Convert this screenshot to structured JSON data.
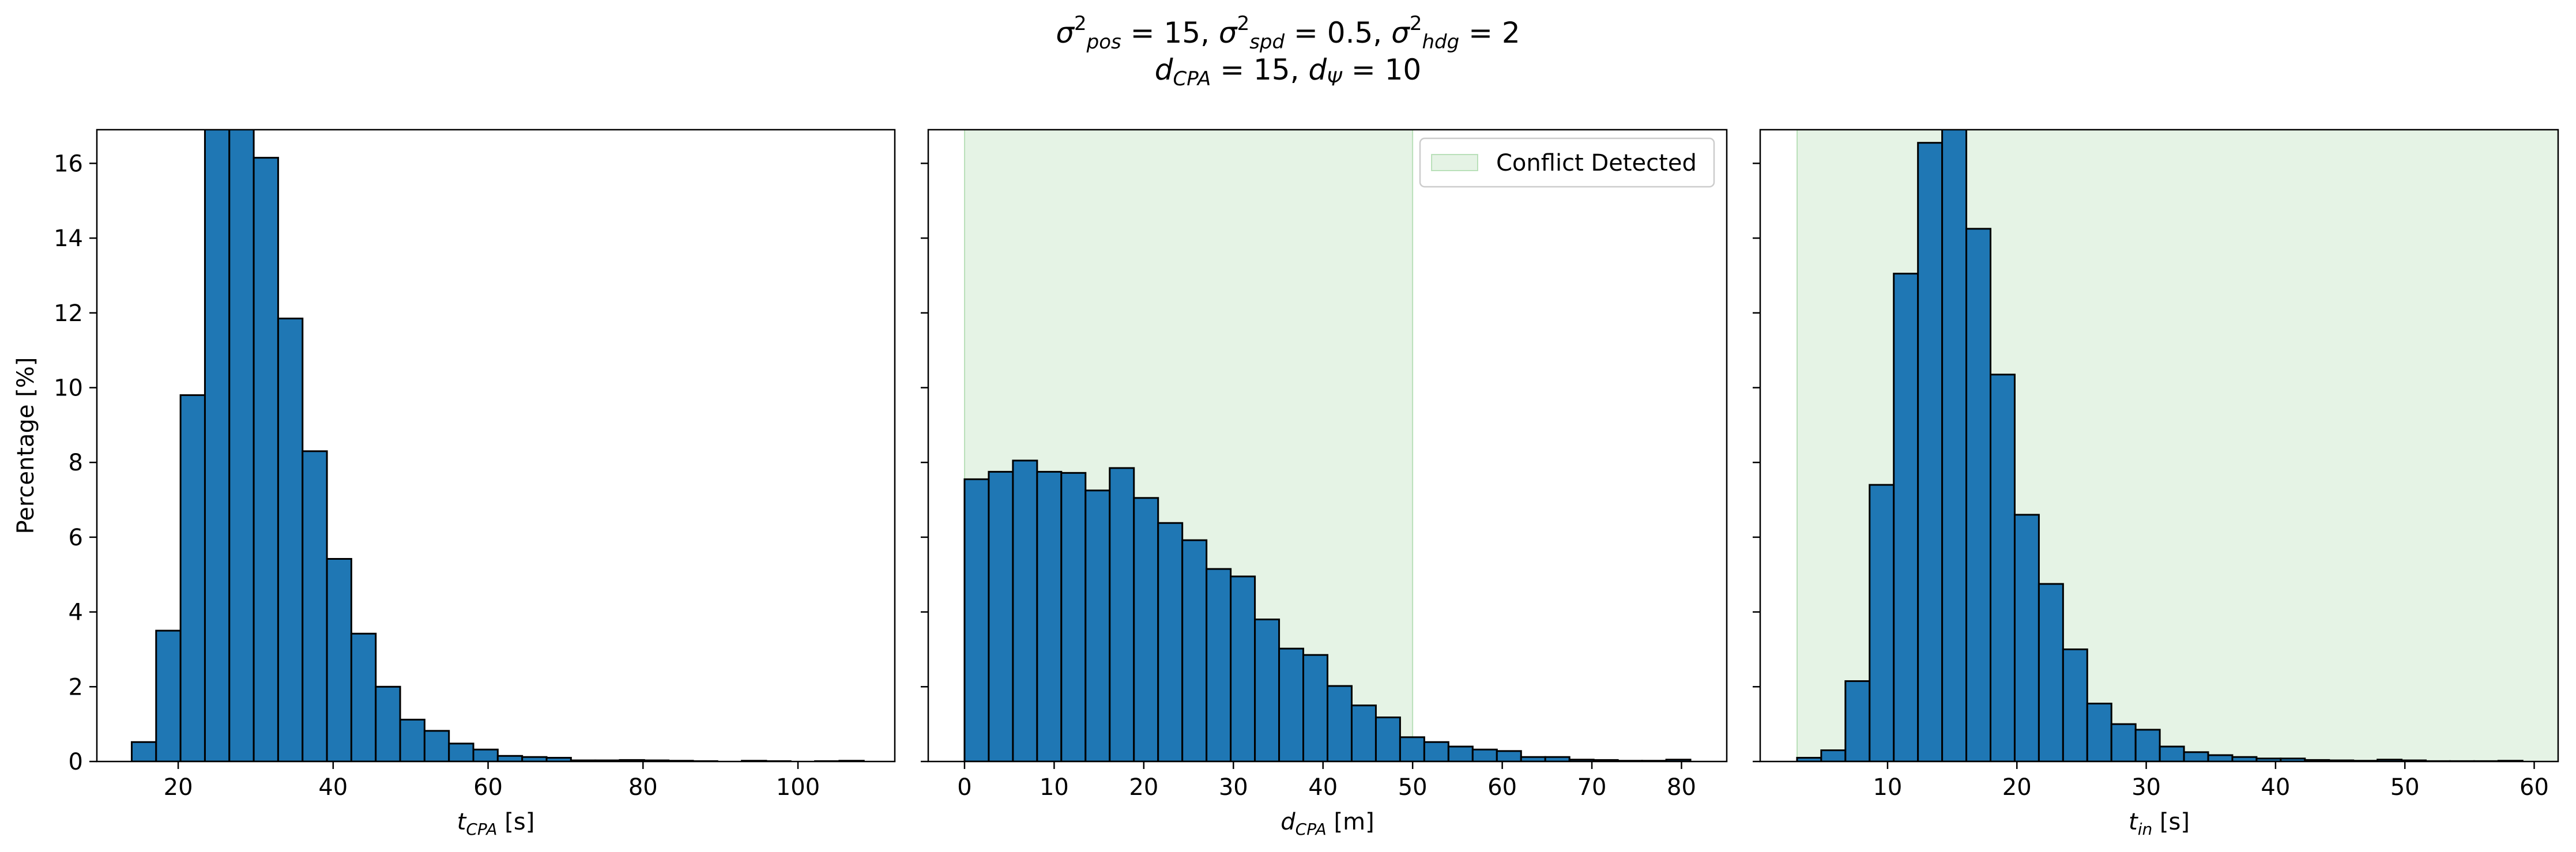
{
  "figure": {
    "title_line1": "σ²pos = 15, σ²spd = 0.5, σ²hdg = 2",
    "title_line2": "dCPA = 15, dΨ = 10",
    "title_parts": {
      "pos_sub": "pos",
      "pos_val": " = 15, ",
      "spd_sub": "spd",
      "spd_val": " = 0.5, ",
      "hdg_sub": "hdg",
      "hdg_val": " = 2",
      "dcpa_sub": "CPA",
      "dcpa_val": " = 15, ",
      "dpsi_sub": "Ψ",
      "dpsi_val": " = 10"
    }
  },
  "chart_data": [
    {
      "type": "bar",
      "ylabel": "Percentage [%]",
      "xlabel": "tCPA [s]",
      "xlabel_main": "t",
      "xlabel_sub": "CPA",
      "xlabel_unit": " [s]",
      "xlim": [
        9.5,
        112.5
      ],
      "ylim": [
        0,
        16.9
      ],
      "xticks": [
        20,
        40,
        60,
        80,
        100
      ],
      "yticks": [
        0,
        2,
        4,
        6,
        8,
        10,
        12,
        14,
        16
      ],
      "bar_color": "#1f77b4",
      "bin_start": 14.0,
      "bin_width": 3.15,
      "values": [
        0.52,
        3.5,
        9.8,
        17.0,
        17.0,
        16.15,
        11.85,
        8.3,
        5.42,
        3.42,
        2.0,
        1.12,
        0.82,
        0.48,
        0.32,
        0.15,
        0.12,
        0.1,
        0.03,
        0.03,
        0.04,
        0.03,
        0.02,
        0.01,
        0.0,
        0.02,
        0.01,
        0.0,
        0.01,
        0.02
      ],
      "shade": null
    },
    {
      "type": "bar",
      "ylabel": "",
      "xlabel": "dCPA [m]",
      "xlabel_main": "d",
      "xlabel_sub": "CPA",
      "xlabel_unit": " [m]",
      "xlim": [
        -4.05,
        85.05
      ],
      "ylim": [
        0,
        16.9
      ],
      "xticks": [
        0,
        10,
        20,
        30,
        40,
        50,
        60,
        70,
        80
      ],
      "yticks": [
        0,
        2,
        4,
        6,
        8,
        10,
        12,
        14,
        16
      ],
      "bar_color": "#1f77b4",
      "bin_start": 0.0,
      "bin_width": 2.7,
      "values": [
        7.55,
        7.75,
        8.05,
        7.75,
        7.72,
        7.25,
        7.85,
        7.05,
        6.38,
        5.92,
        5.15,
        4.95,
        3.8,
        3.02,
        2.85,
        2.02,
        1.5,
        1.18,
        0.65,
        0.52,
        0.4,
        0.32,
        0.28,
        0.12,
        0.12,
        0.05,
        0.04,
        0.02,
        0.02,
        0.05
      ],
      "shade": {
        "x0": 0,
        "x1": 50,
        "color": "#2ca02c",
        "opacity": 0.12
      },
      "legend": {
        "label": "Conflict Detected",
        "position": "upper right"
      }
    },
    {
      "type": "bar",
      "ylabel": "",
      "xlabel": "tin [s]",
      "xlabel_main": "t",
      "xlabel_sub": "in",
      "xlabel_unit": " [s]",
      "xlim": [
        0.15,
        61.85
      ],
      "ylim": [
        0,
        16.9
      ],
      "xticks": [
        10,
        20,
        30,
        40,
        50,
        60
      ],
      "yticks": [
        0,
        2,
        4,
        6,
        8,
        10,
        12,
        14,
        16
      ],
      "bar_color": "#1f77b4",
      "bin_start": 3.0,
      "bin_width": 1.87,
      "values": [
        0.1,
        0.3,
        2.15,
        7.4,
        13.05,
        16.55,
        17.0,
        14.25,
        10.35,
        6.6,
        4.75,
        3.0,
        1.55,
        1.0,
        0.85,
        0.4,
        0.25,
        0.17,
        0.12,
        0.08,
        0.08,
        0.04,
        0.03,
        0.02,
        0.05,
        0.03,
        0.01,
        0.01,
        0.01,
        0.02
      ],
      "shade": {
        "x0": 3,
        "x1": 61.85,
        "color": "#2ca02c",
        "opacity": 0.12
      }
    }
  ]
}
